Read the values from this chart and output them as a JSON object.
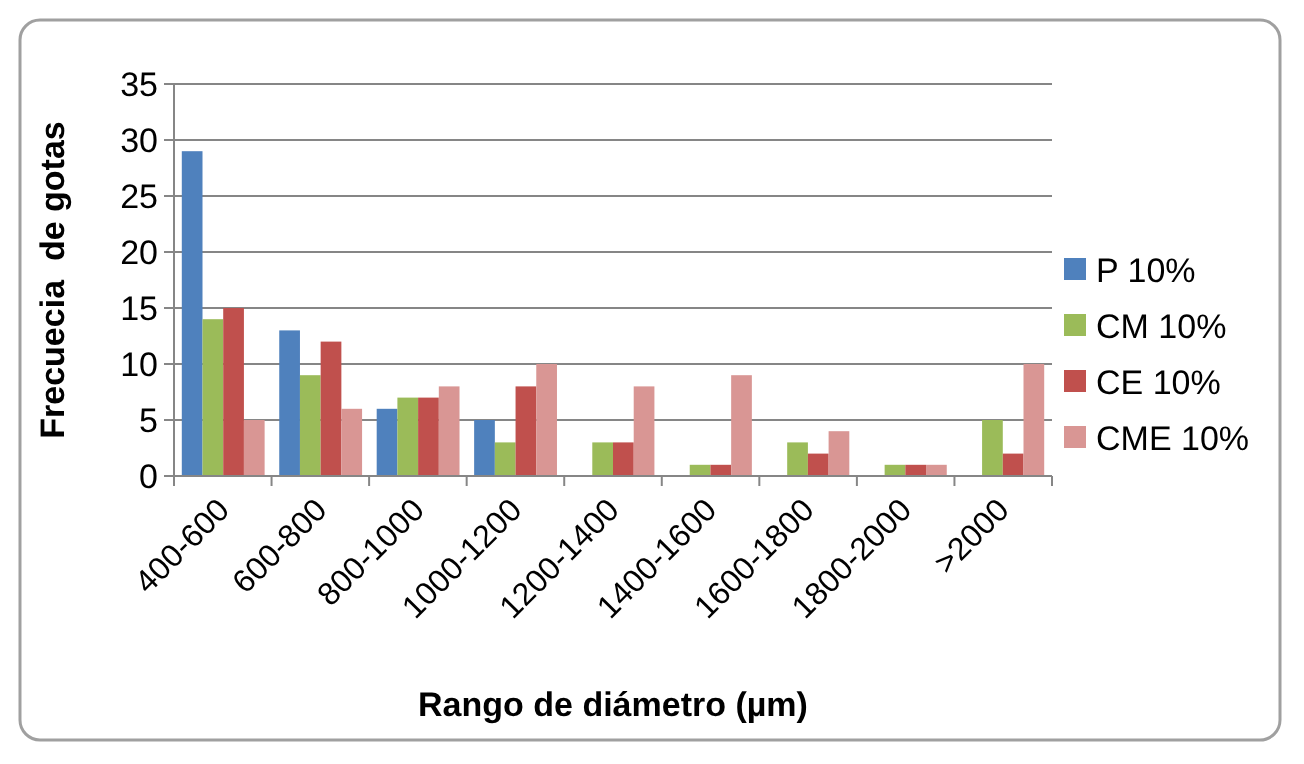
{
  "chart_data": {
    "type": "bar",
    "xlabel": "Rango de diámetro (µm)",
    "ylabel": "Frecuecia  de gotas",
    "categories": [
      "400-600",
      "600-800",
      "800-1000",
      "1000-1200",
      "1200-1400",
      "1400-1600",
      "1600-1800",
      "1800-2000",
      ">2000"
    ],
    "series": [
      {
        "name": "P 10%",
        "color": "#4f81bd",
        "values": [
          29,
          13,
          6,
          5,
          null,
          null,
          null,
          null,
          null
        ]
      },
      {
        "name": "CM 10%",
        "color": "#9bbb59",
        "values": [
          14,
          9,
          7,
          3,
          3,
          1,
          3,
          1,
          5
        ]
      },
      {
        "name": "CE 10%",
        "color": "#c0504d",
        "values": [
          15,
          12,
          7,
          8,
          3,
          1,
          2,
          1,
          2
        ]
      },
      {
        "name": "CME 10%",
        "color": "#d99694",
        "values": [
          5,
          6,
          8,
          10,
          8,
          9,
          4,
          1,
          10
        ]
      }
    ],
    "ylim": [
      0,
      35
    ],
    "yticks": [
      0,
      5,
      10,
      15,
      20,
      25,
      30,
      35
    ],
    "grid": "y",
    "legend": "right"
  }
}
